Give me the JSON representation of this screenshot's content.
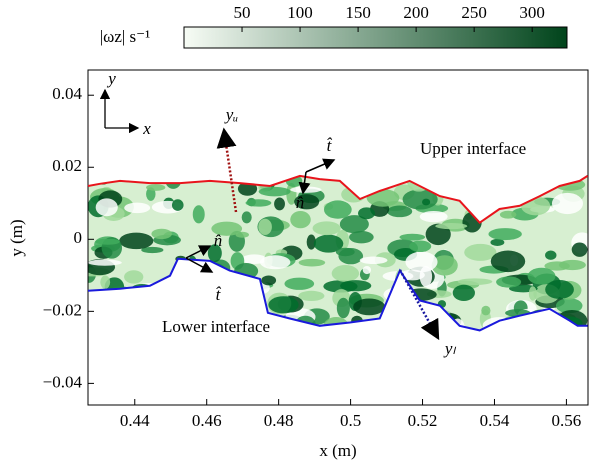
{
  "chart_data": {
    "type": "line",
    "x_label": "x (m)",
    "y_label": "y (m)",
    "xlim": [
      0.427,
      0.566
    ],
    "ylim": [
      -0.046,
      0.047
    ],
    "xticks": [
      0.44,
      0.46,
      0.48,
      0.5,
      0.52,
      0.54,
      0.56
    ],
    "yticks": [
      {
        "value": -0.04,
        "label": "−0.04"
      },
      {
        "value": -0.02,
        "label": "−0.02"
      },
      0,
      0.02,
      0.04
    ],
    "colorbar": {
      "label": "|ωz| s⁻¹",
      "lim": [
        0,
        330
      ],
      "ticks": [
        50,
        100,
        150,
        200,
        250,
        300
      ],
      "colors": [
        "#f7fcf5",
        "#00441b"
      ]
    },
    "series": [
      {
        "name": "Upper interface",
        "color": "#e8141c",
        "x": [
          0.427,
          0.4303,
          0.4359,
          0.4442,
          0.4526,
          0.4609,
          0.4692,
          0.4776,
          0.4859,
          0.4914,
          0.497,
          0.5026,
          0.5081,
          0.5164,
          0.5248,
          0.5303,
          0.5359,
          0.5414,
          0.547,
          0.5526,
          0.5581,
          0.5637,
          0.5659
        ],
        "values": [
          0.0148,
          0.0154,
          0.0162,
          0.0156,
          0.0156,
          0.0162,
          0.0156,
          0.0148,
          0.0176,
          0.0167,
          0.0162,
          0.0112,
          0.0134,
          0.0162,
          0.012,
          0.0107,
          0.0046,
          0.0084,
          0.0093,
          0.012,
          0.0148,
          0.0162,
          0.0176
        ]
      },
      {
        "name": "Lower interface",
        "color": "#1a1adc",
        "x": [
          0.427,
          0.4359,
          0.4442,
          0.4498,
          0.452,
          0.4609,
          0.4664,
          0.4748,
          0.477,
          0.4831,
          0.4914,
          0.4998,
          0.5081,
          0.5137,
          0.5192,
          0.5248,
          0.5303,
          0.5359,
          0.5414,
          0.547,
          0.5553,
          0.5609,
          0.5631,
          0.5659
        ],
        "values": [
          -0.0143,
          -0.0137,
          -0.0129,
          -0.0101,
          -0.0054,
          -0.006,
          -0.0087,
          -0.011,
          -0.0204,
          -0.022,
          -0.024,
          -0.0231,
          -0.022,
          -0.0087,
          -0.017,
          -0.0184,
          -0.024,
          -0.0253,
          -0.0226,
          -0.0212,
          -0.0193,
          -0.0226,
          -0.024,
          -0.024
        ]
      }
    ],
    "annotations": [
      "yᵤ",
      "yₗ",
      "t̂",
      "n̂",
      "n̂",
      "t̂",
      "y",
      "x"
    ]
  }
}
